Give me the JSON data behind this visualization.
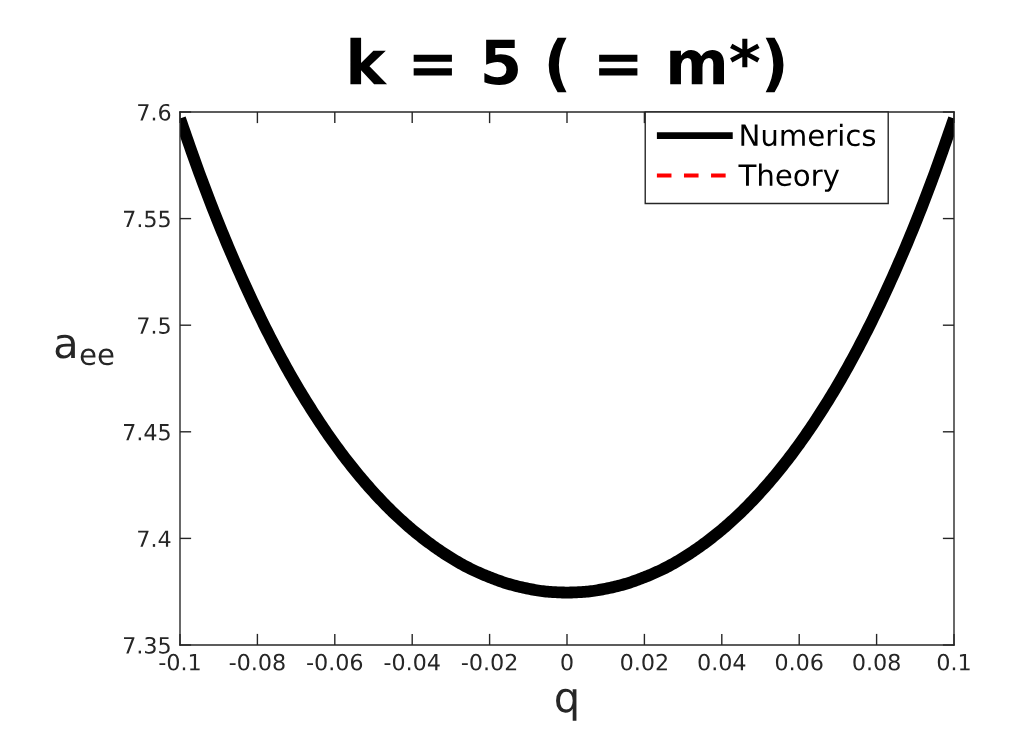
{
  "chart_data": {
    "type": "line",
    "title": "k = 5 ( = m*)",
    "xlabel": "q",
    "ylabel": "a$_{ee}$",
    "x": [
      -0.1,
      -0.095,
      -0.09,
      -0.085,
      -0.08,
      -0.075,
      -0.07,
      -0.065,
      -0.06,
      -0.055,
      -0.05,
      -0.045,
      -0.04,
      -0.035,
      -0.03,
      -0.025,
      -0.02,
      -0.015,
      -0.01,
      -0.005,
      0,
      0.005,
      0.01,
      0.015,
      0.02,
      0.025,
      0.03,
      0.035,
      0.04,
      0.045,
      0.05,
      0.055,
      0.06,
      0.065,
      0.07,
      0.075,
      0.08,
      0.085,
      0.09,
      0.095,
      0.1
    ],
    "series": [
      {
        "name": "Numerics",
        "color": "#000000",
        "line_style": "solid",
        "values": [
          7.597,
          7.5713,
          7.5477,
          7.5262,
          7.5065,
          7.4885,
          7.4722,
          7.4575,
          7.4442,
          7.4323,
          7.4217,
          7.4123,
          7.4041,
          7.397,
          7.3909,
          7.3858,
          7.3818,
          7.3786,
          7.3764,
          7.375,
          7.3746,
          7.375,
          7.3764,
          7.3786,
          7.3818,
          7.3858,
          7.3909,
          7.397,
          7.4041,
          7.4123,
          7.4217,
          7.4323,
          7.4442,
          7.4575,
          7.4722,
          7.4885,
          7.5065,
          7.5262,
          7.5477,
          7.5713,
          7.597
        ]
      },
      {
        "name": "Theory",
        "color": "#ff0000",
        "line_style": "dashed",
        "values": [
          null,
          null,
          null,
          null,
          null,
          null,
          null,
          null,
          null,
          null,
          null,
          null,
          null,
          null,
          null,
          null,
          null,
          null,
          null,
          null,
          null,
          null,
          null,
          null,
          null,
          null,
          null,
          null,
          null,
          null,
          null,
          null,
          null,
          null,
          null,
          null,
          null,
          null,
          null,
          null,
          null
        ]
      }
    ],
    "xlim": [
      -0.1,
      0.1
    ],
    "ylim": [
      7.35,
      7.6
    ],
    "xticks": [
      -0.1,
      -0.08,
      -0.06,
      -0.04,
      -0.02,
      0,
      0.02,
      0.04,
      0.06,
      0.08,
      0.1
    ],
    "yticks": [
      7.35,
      7.4,
      7.45,
      7.5,
      7.55,
      7.6
    ],
    "legend": "top right"
  }
}
